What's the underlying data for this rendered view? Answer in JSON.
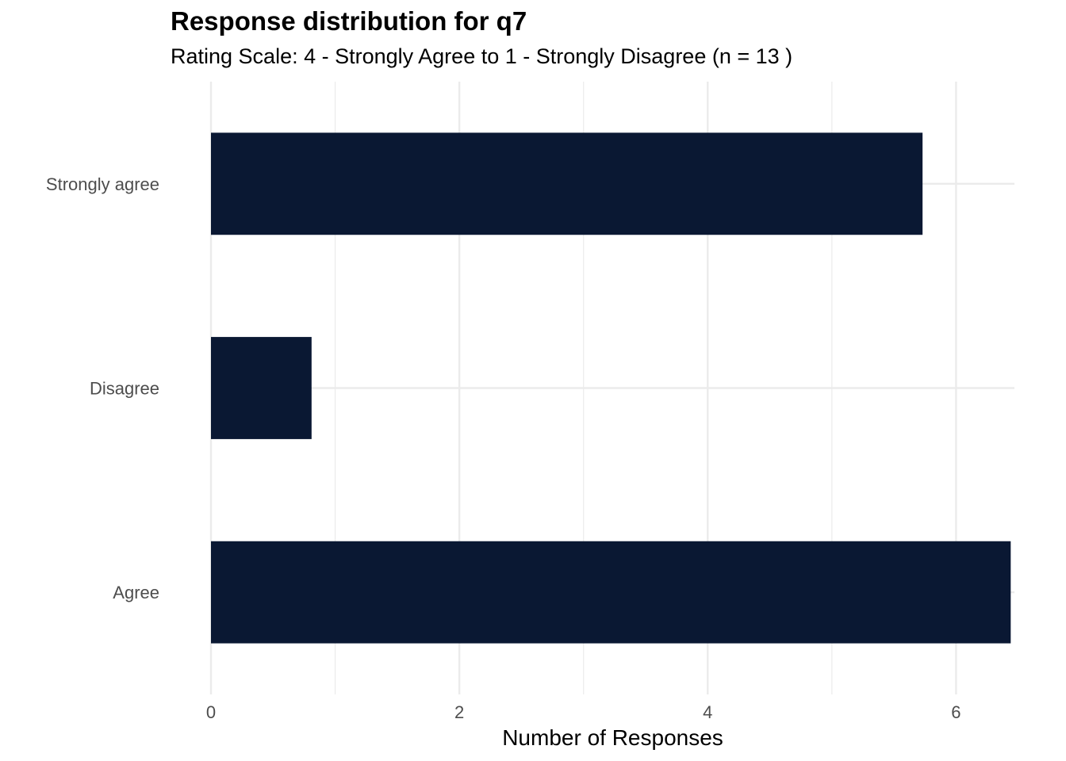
{
  "chart_data": {
    "type": "bar",
    "orientation": "horizontal",
    "title": "Response distribution for q7",
    "subtitle": "Rating Scale: 4 - Strongly Agree to 1 - Strongly Disagree (n = 13 )",
    "xlabel": "Number of Responses",
    "ylabel": "",
    "categories": [
      "Strongly agree",
      "Disagree",
      "Agree"
    ],
    "values": [
      5.73,
      0.81,
      6.44
    ],
    "xlim": [
      0,
      6.47
    ],
    "x_ticks": [
      0,
      2,
      4,
      6
    ],
    "grid": true,
    "legend": "none",
    "bar_color": "#0a1833",
    "grid_color": "#ebebeb",
    "tick_label_color": "#4d4d4d"
  }
}
